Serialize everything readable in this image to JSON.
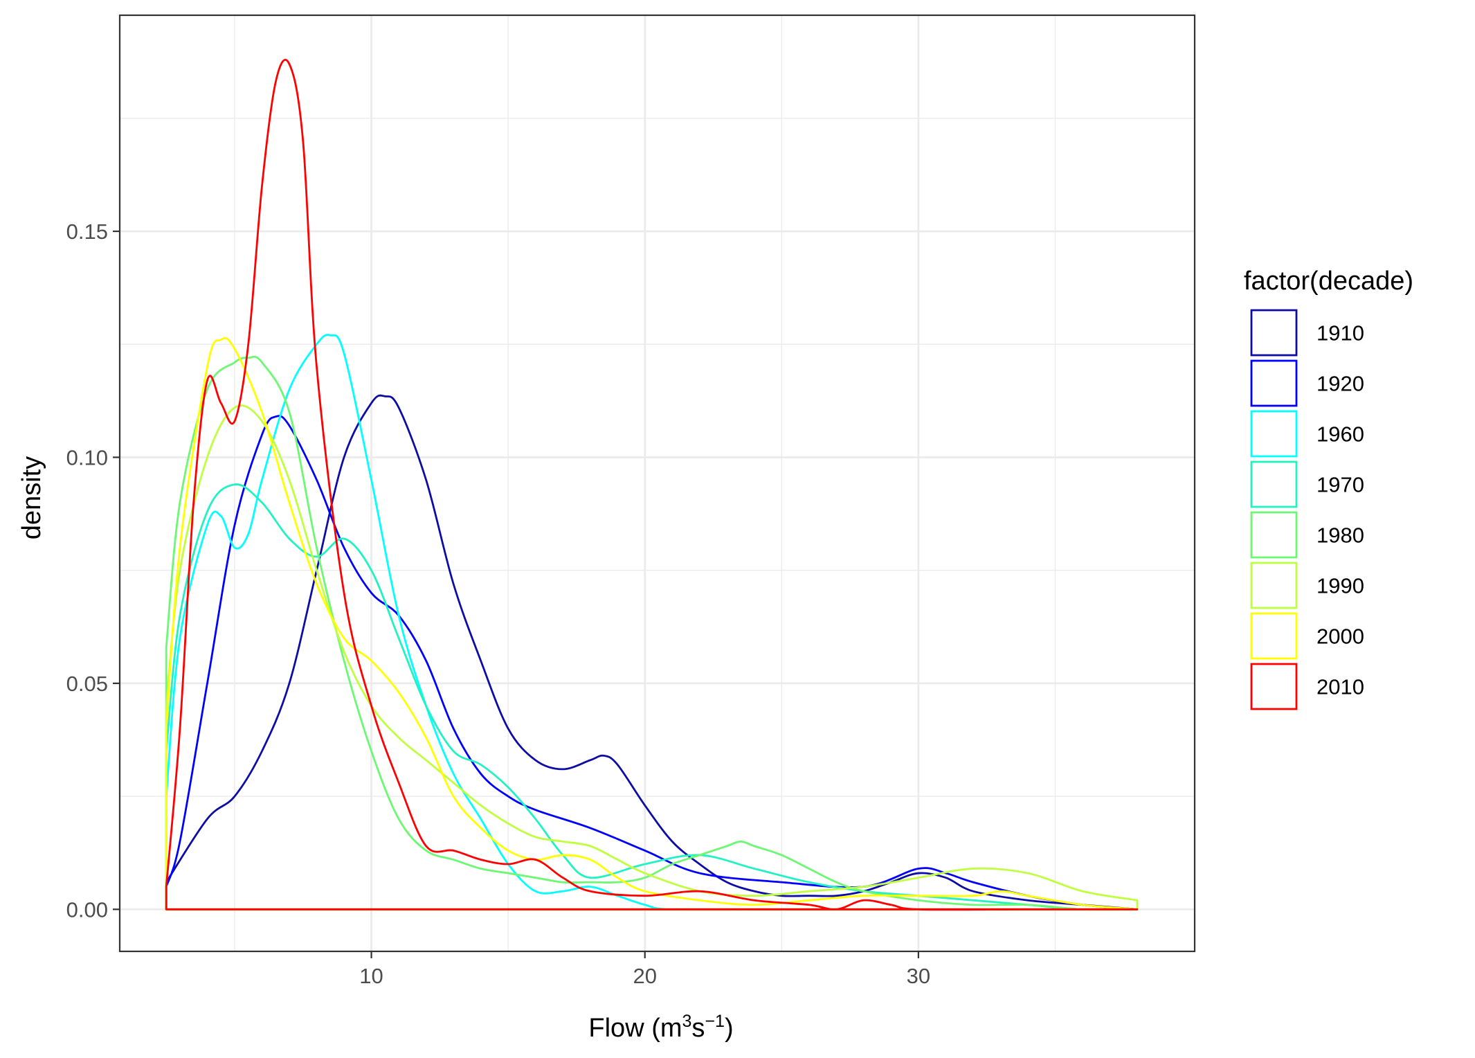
{
  "chart_data": {
    "type": "line",
    "title": "",
    "xlabel": {
      "base": "Flow (m",
      "sup1": "3",
      "mid": "s",
      "sup2": "−1",
      "end": ")"
    },
    "ylabel": "density",
    "xlim": [
      0.8,
      40.1
    ],
    "ylim": [
      -0.0093,
      0.1978
    ],
    "x_ticks": [
      10,
      20,
      30
    ],
    "x_tick_labels": [
      "10",
      "20",
      "30"
    ],
    "y_ticks": [
      0.0,
      0.05,
      0.1,
      0.15
    ],
    "y_tick_labels": [
      "0.00",
      "0.05",
      "0.10",
      "0.15"
    ],
    "grid": true,
    "legend": {
      "title": "factor(decade)",
      "position": "right"
    },
    "series": [
      {
        "name": "1910",
        "color": "#0D0DA6",
        "x": [
          2.5,
          4,
          5,
          6,
          7,
          8,
          9,
          10,
          10.5,
          11,
          12,
          13,
          14,
          15,
          16,
          17,
          18,
          18.5,
          19,
          20,
          21,
          22,
          23,
          24,
          25,
          26,
          27,
          28,
          29,
          30,
          31,
          32,
          34,
          36,
          38
        ],
        "y": [
          0.006,
          0.02,
          0.025,
          0.035,
          0.05,
          0.075,
          0.1,
          0.112,
          0.1135,
          0.111,
          0.095,
          0.072,
          0.055,
          0.04,
          0.033,
          0.031,
          0.033,
          0.034,
          0.032,
          0.023,
          0.015,
          0.01,
          0.006,
          0.004,
          0.003,
          0.003,
          0.003,
          0.004,
          0.006,
          0.008,
          0.007,
          0.004,
          0.002,
          0.001,
          0.0
        ]
      },
      {
        "name": "1920",
        "color": "#0000FF",
        "x": [
          2.5,
          3,
          4,
          5,
          6,
          6.5,
          7,
          8,
          9,
          10,
          11,
          12,
          13,
          14,
          15,
          16,
          18,
          20,
          22,
          25,
          28,
          30,
          31,
          32,
          34,
          36,
          38
        ],
        "y": [
          0.005,
          0.015,
          0.05,
          0.085,
          0.105,
          0.109,
          0.107,
          0.095,
          0.08,
          0.07,
          0.065,
          0.055,
          0.04,
          0.03,
          0.025,
          0.022,
          0.018,
          0.013,
          0.008,
          0.006,
          0.005,
          0.009,
          0.008,
          0.006,
          0.003,
          0.001,
          0.0
        ]
      },
      {
        "name": "1960",
        "color": "#00FFFF",
        "x": [
          2.5,
          3,
          4,
          4.5,
          5,
          5.5,
          6,
          7,
          8,
          8.5,
          9,
          10,
          11,
          12,
          13,
          14,
          15,
          16,
          17,
          18,
          19,
          20,
          21,
          25,
          30,
          38
        ],
        "y": [
          0.025,
          0.06,
          0.085,
          0.087,
          0.08,
          0.083,
          0.095,
          0.115,
          0.125,
          0.127,
          0.123,
          0.095,
          0.065,
          0.045,
          0.03,
          0.02,
          0.01,
          0.004,
          0.004,
          0.005,
          0.003,
          0.001,
          0.0,
          0.0,
          0.0,
          0.0
        ]
      },
      {
        "name": "1970",
        "color": "#22F2C2",
        "x": [
          2.5,
          3,
          4,
          5,
          6,
          7,
          8,
          9,
          10,
          11,
          12,
          13,
          14,
          15,
          16,
          17,
          18,
          20,
          22,
          24,
          26,
          28,
          30,
          32,
          34,
          36,
          38
        ],
        "y": [
          0.035,
          0.065,
          0.088,
          0.094,
          0.09,
          0.082,
          0.078,
          0.082,
          0.075,
          0.06,
          0.045,
          0.035,
          0.032,
          0.027,
          0.02,
          0.012,
          0.007,
          0.01,
          0.012,
          0.009,
          0.006,
          0.004,
          0.003,
          0.002,
          0.001,
          0.0,
          0.0
        ]
      },
      {
        "name": "1980",
        "color": "#6CF872",
        "x": [
          2.5,
          3,
          4,
          5,
          5.5,
          6,
          7,
          8,
          9,
          10,
          11,
          12,
          13,
          14,
          15,
          16,
          17,
          18,
          19,
          20,
          21,
          22,
          23,
          23.5,
          24,
          25,
          26,
          27,
          28,
          30,
          32,
          34,
          36,
          38
        ],
        "y": [
          0.058,
          0.09,
          0.115,
          0.121,
          0.122,
          0.121,
          0.11,
          0.08,
          0.055,
          0.035,
          0.02,
          0.013,
          0.011,
          0.009,
          0.008,
          0.007,
          0.006,
          0.006,
          0.006,
          0.007,
          0.01,
          0.012,
          0.014,
          0.015,
          0.014,
          0.012,
          0.009,
          0.006,
          0.004,
          0.002,
          0.001,
          0.001,
          0.0,
          0.0
        ]
      },
      {
        "name": "1990",
        "color": "#BFFF40",
        "x": [
          2.5,
          3,
          4,
          5,
          6,
          7,
          8,
          9,
          10,
          11,
          12,
          13,
          14,
          15,
          16,
          17,
          18,
          19,
          20,
          22,
          24,
          26,
          28,
          30,
          32,
          34,
          36,
          38
        ],
        "y": [
          0.045,
          0.075,
          0.1,
          0.111,
          0.108,
          0.095,
          0.075,
          0.057,
          0.045,
          0.038,
          0.033,
          0.028,
          0.023,
          0.019,
          0.016,
          0.015,
          0.014,
          0.011,
          0.008,
          0.004,
          0.003,
          0.004,
          0.005,
          0.007,
          0.009,
          0.008,
          0.004,
          0.002
        ]
      },
      {
        "name": "2000",
        "color": "#FFFF00",
        "x": [
          2.5,
          3,
          4,
          4.5,
          5,
          6,
          7,
          8,
          9,
          10,
          11,
          12,
          13,
          14,
          15,
          16,
          17,
          18,
          19,
          20,
          22,
          24,
          26,
          28,
          30,
          32,
          33,
          34,
          36,
          38
        ],
        "y": [
          0.04,
          0.08,
          0.12,
          0.126,
          0.124,
          0.11,
          0.09,
          0.072,
          0.06,
          0.055,
          0.048,
          0.038,
          0.025,
          0.018,
          0.013,
          0.011,
          0.012,
          0.011,
          0.007,
          0.004,
          0.002,
          0.001,
          0.002,
          0.003,
          0.003,
          0.003,
          0.004,
          0.003,
          0.001,
          0.0
        ]
      },
      {
        "name": "2010",
        "color": "#FF0000",
        "x": [
          2.5,
          3,
          3.5,
          4,
          4.5,
          5,
          5.5,
          6,
          6.5,
          7,
          7.5,
          8,
          9,
          10,
          11,
          12,
          13,
          14,
          15,
          16,
          17,
          18,
          20,
          22,
          24,
          26,
          27,
          28,
          29,
          30,
          34,
          38
        ],
        "y": [
          0.005,
          0.04,
          0.09,
          0.117,
          0.112,
          0.108,
          0.125,
          0.16,
          0.183,
          0.187,
          0.17,
          0.12,
          0.07,
          0.045,
          0.028,
          0.014,
          0.013,
          0.011,
          0.01,
          0.011,
          0.007,
          0.004,
          0.003,
          0.004,
          0.002,
          0.001,
          0.0,
          0.002,
          0.001,
          0.0,
          0.0,
          0.0
        ]
      }
    ]
  }
}
